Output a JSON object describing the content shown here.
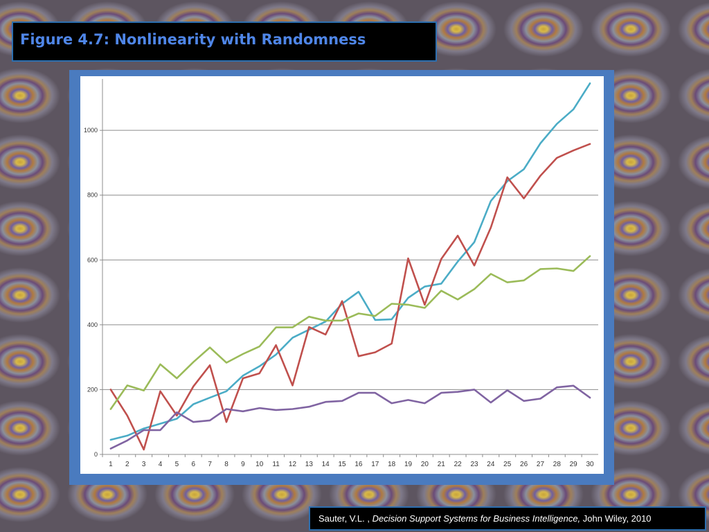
{
  "header": {
    "title": "Figure 4.7:  Nonlinearity with Randomness"
  },
  "citation": {
    "author": "Sauter, V.L. , ",
    "book": "Decision Support Systems for Business Intelligence,",
    "publisher": " John Wiley, 2010"
  },
  "chart_data": {
    "type": "line",
    "title": "",
    "xlabel": "",
    "ylabel": "",
    "x": [
      1,
      2,
      3,
      4,
      5,
      6,
      7,
      8,
      9,
      10,
      11,
      12,
      13,
      14,
      15,
      16,
      17,
      18,
      19,
      20,
      21,
      22,
      23,
      24,
      25,
      26,
      27,
      28,
      29,
      30
    ],
    "ylim": [
      0,
      1150
    ],
    "yticks": [
      0,
      200,
      400,
      600,
      800,
      1000
    ],
    "grid": true,
    "series": [
      {
        "color": "#4bacc6",
        "values": [
          45,
          58,
          80,
          95,
          110,
          155,
          175,
          195,
          243,
          272,
          308,
          360,
          385,
          410,
          465,
          502,
          415,
          417,
          483,
          518,
          527,
          595,
          655,
          782,
          843,
          880,
          960,
          1020,
          1065,
          1145
        ]
      },
      {
        "color": "#c0504d",
        "values": [
          200,
          120,
          15,
          195,
          120,
          210,
          275,
          100,
          235,
          250,
          337,
          213,
          393,
          370,
          473,
          303,
          315,
          342,
          605,
          462,
          603,
          675,
          583,
          700,
          855,
          790,
          860,
          915,
          938,
          958
        ]
      },
      {
        "color": "#9bbb59",
        "values": [
          140,
          213,
          197,
          278,
          235,
          285,
          330,
          283,
          310,
          333,
          392,
          392,
          425,
          413,
          413,
          435,
          427,
          465,
          462,
          452,
          505,
          478,
          510,
          557,
          531,
          537,
          572,
          574,
          566,
          612
        ]
      },
      {
        "color": "#8064a2",
        "values": [
          18,
          43,
          75,
          75,
          130,
          100,
          105,
          140,
          133,
          143,
          137,
          140,
          147,
          162,
          165,
          190,
          190,
          158,
          168,
          158,
          190,
          193,
          200,
          160,
          198,
          165,
          172,
          207,
          212,
          175
        ]
      }
    ]
  }
}
